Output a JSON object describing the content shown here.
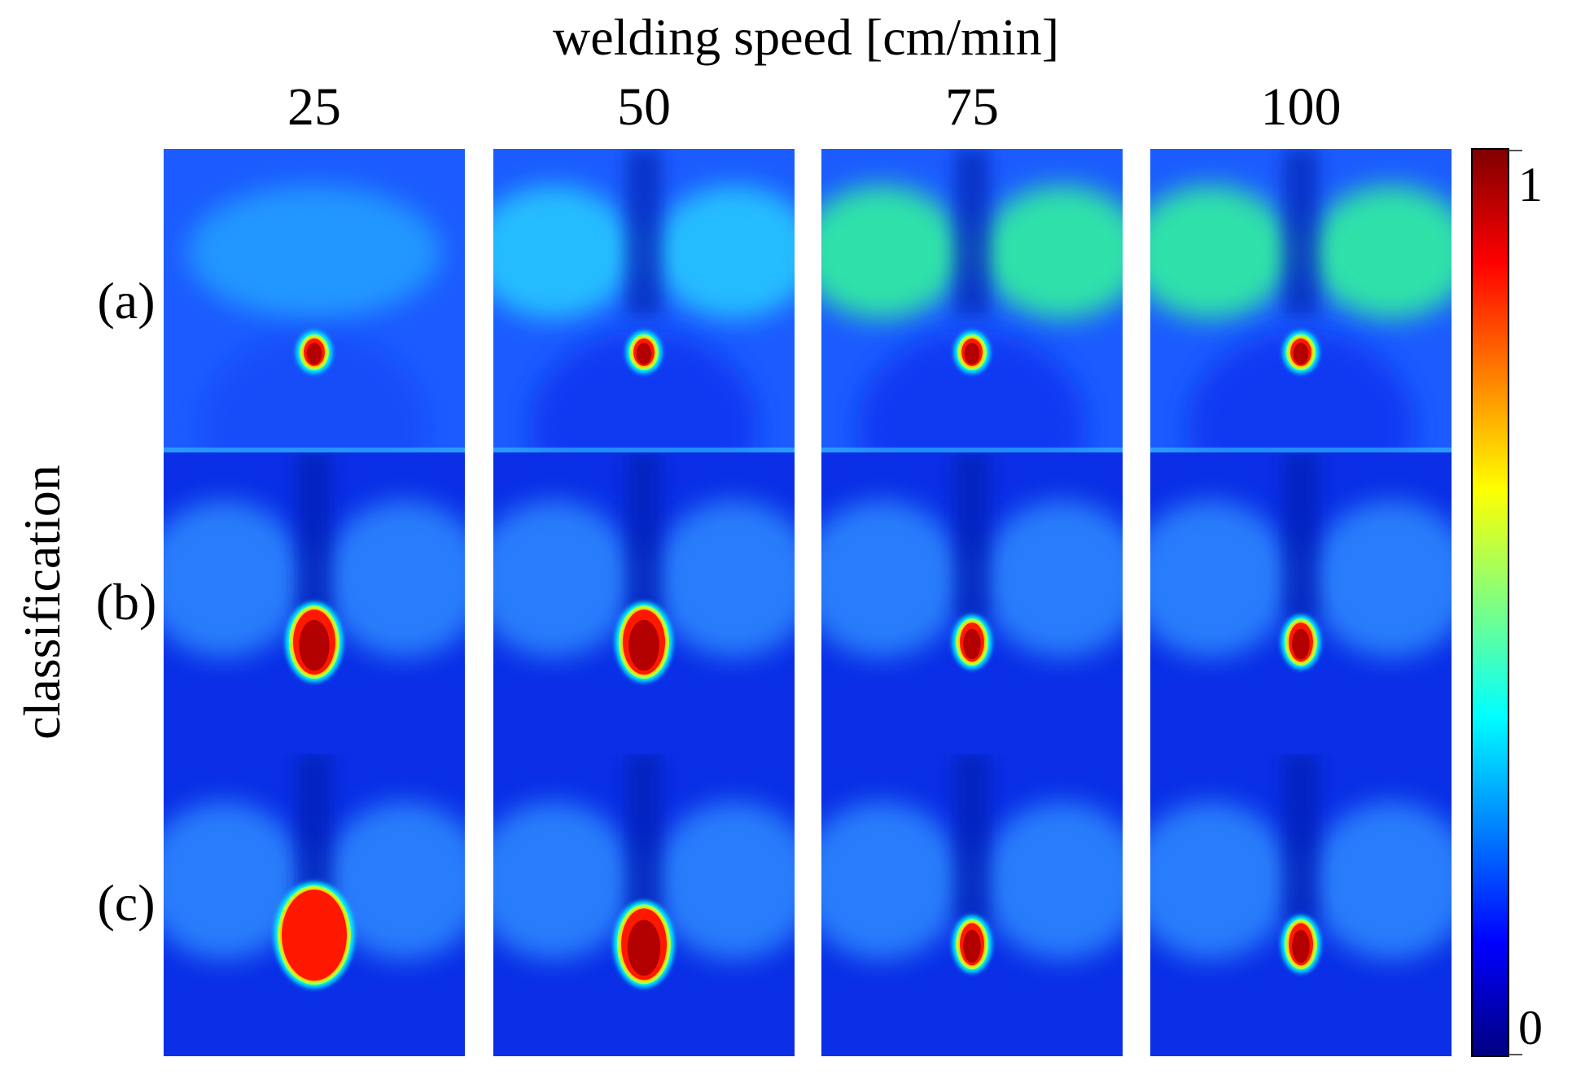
{
  "figure": {
    "title": "welding speed [cm/min]",
    "y_label": "classification",
    "columns": [
      "25",
      "50",
      "75",
      "100"
    ],
    "rows": [
      "(a)",
      "(b)",
      "(c)"
    ],
    "colorbar": {
      "colormap": "jet",
      "min_label": "0",
      "max_label": "1",
      "stops": [
        "#00007f",
        "#0000ff",
        "#0080ff",
        "#00ffff",
        "#80ff80",
        "#ffff00",
        "#ff8000",
        "#ff0000",
        "#7f0000"
      ]
    },
    "panels": [
      {
        "row": "(a)",
        "speed": "25",
        "spot_size": "small"
      },
      {
        "row": "(a)",
        "speed": "50",
        "spot_size": "small"
      },
      {
        "row": "(a)",
        "speed": "75",
        "spot_size": "small"
      },
      {
        "row": "(a)",
        "speed": "100",
        "spot_size": "small"
      },
      {
        "row": "(b)",
        "speed": "25",
        "spot_size": "medium"
      },
      {
        "row": "(b)",
        "speed": "50",
        "spot_size": "medium"
      },
      {
        "row": "(b)",
        "speed": "75",
        "spot_size": "small"
      },
      {
        "row": "(b)",
        "speed": "100",
        "spot_size": "small"
      },
      {
        "row": "(c)",
        "speed": "25",
        "spot_size": "large"
      },
      {
        "row": "(c)",
        "speed": "50",
        "spot_size": "medium"
      },
      {
        "row": "(c)",
        "speed": "75",
        "spot_size": "small"
      },
      {
        "row": "(c)",
        "speed": "100",
        "spot_size": "small"
      }
    ]
  }
}
